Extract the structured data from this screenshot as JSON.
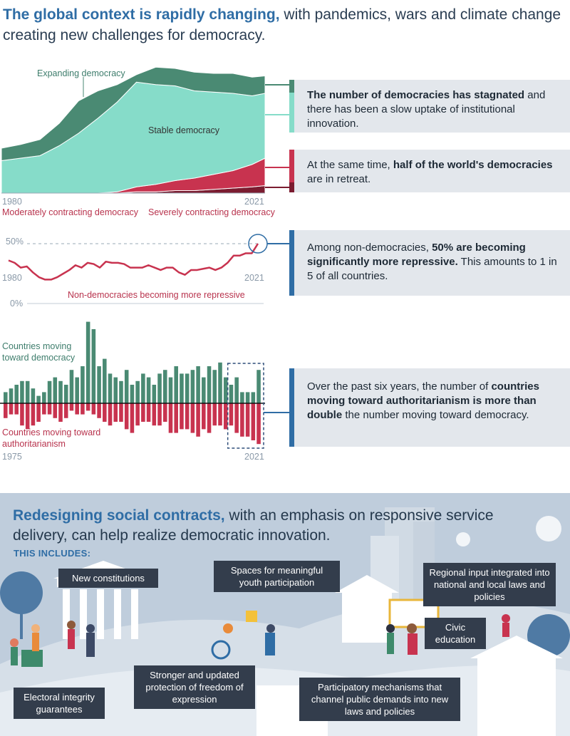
{
  "header": {
    "title_bold": "The global context is rapidly changing,",
    "title_rest": " with pandemics, wars and climate change creating new challenges for democracy."
  },
  "colors": {
    "expanding": "#4a8a73",
    "stable": "#86dcc9",
    "moderate": "#c8334f",
    "severe": "#7b1c30",
    "blue": "#2f6da5"
  },
  "area_chart": {
    "labels": {
      "expanding": "Expanding democracy",
      "stable": "Stable democracy",
      "moderate": "Moderately contracting democracy",
      "severe": "Severely contracting democracy",
      "year_start": "1980",
      "year_end": "2021"
    },
    "chart_data": {
      "type": "area",
      "x": [
        1980,
        1983,
        1986,
        1989,
        1992,
        1995,
        1998,
        2001,
        2004,
        2007,
        2010,
        2013,
        2016,
        2019,
        2021
      ],
      "series": [
        {
          "name": "Severely contracting democracy",
          "values": [
            0,
            0,
            0,
            0,
            0,
            0,
            0,
            1,
            1,
            2,
            2,
            3,
            4,
            5,
            6
          ]
        },
        {
          "name": "Moderately contracting democracy",
          "values": [
            0,
            0,
            0,
            0,
            0,
            0,
            1,
            4,
            6,
            8,
            10,
            12,
            14,
            18,
            22
          ]
        },
        {
          "name": "Stable democracy",
          "values": [
            26,
            28,
            30,
            38,
            48,
            60,
            72,
            84,
            80,
            76,
            70,
            66,
            62,
            55,
            52
          ]
        },
        {
          "name": "Expanding democracy",
          "values": [
            10,
            11,
            13,
            18,
            26,
            22,
            14,
            6,
            14,
            14,
            15,
            15,
            16,
            15,
            14
          ]
        }
      ]
    },
    "box": {
      "bold": "The number of democracies has stagnated",
      "rest": " and there has been a slow uptake of institutional innovation."
    },
    "box2": {
      "pre": "At the same time, ",
      "bold": "half of the world's democracies",
      "rest": " are in retreat."
    }
  },
  "line_chart": {
    "labels": {
      "pct50": "50%",
      "pct0": "0%",
      "year_start": "1980",
      "year_end": "2021",
      "series": "Non-democracies becoming more repressive"
    },
    "chart_data": {
      "type": "line",
      "x": [
        1980,
        1981,
        1982,
        1983,
        1984,
        1985,
        1986,
        1987,
        1988,
        1989,
        1990,
        1991,
        1992,
        1993,
        1994,
        1995,
        1996,
        1997,
        1998,
        1999,
        2000,
        2001,
        2002,
        2003,
        2004,
        2005,
        2006,
        2007,
        2008,
        2009,
        2010,
        2011,
        2012,
        2013,
        2014,
        2015,
        2016,
        2017,
        2018,
        2019,
        2020,
        2021
      ],
      "y": [
        36,
        34,
        30,
        31,
        26,
        22,
        20,
        20,
        22,
        25,
        28,
        32,
        30,
        34,
        33,
        30,
        35,
        34,
        34,
        33,
        30,
        30,
        30,
        32,
        30,
        28,
        30,
        30,
        26,
        24,
        28,
        28,
        29,
        30,
        28,
        30,
        34,
        40,
        40,
        42,
        42,
        50
      ],
      "ylim": [
        0,
        50
      ]
    },
    "box": {
      "pre": "Among non-democracies, ",
      "bold": "50% are becoming significantly more repressive.",
      "rest": " This amounts to 1 in 5 of all countries."
    }
  },
  "bar_chart": {
    "labels": {
      "up": "Countries moving toward democracy",
      "down": "Countries moving toward authoritarianism",
      "year_start": "1975",
      "year_end": "2021"
    },
    "chart_data": {
      "type": "bar",
      "x": [
        1975,
        1976,
        1977,
        1978,
        1979,
        1980,
        1981,
        1982,
        1983,
        1984,
        1985,
        1986,
        1987,
        1988,
        1989,
        1990,
        1991,
        1992,
        1993,
        1994,
        1995,
        1996,
        1997,
        1998,
        1999,
        2000,
        2001,
        2002,
        2003,
        2004,
        2005,
        2006,
        2007,
        2008,
        2009,
        2010,
        2011,
        2012,
        2013,
        2014,
        2015,
        2016,
        2017,
        2018,
        2019,
        2020,
        2021
      ],
      "series": [
        {
          "name": "Countries moving toward democracy",
          "values": [
            3,
            4,
            5,
            6,
            6,
            4,
            2,
            3,
            6,
            7,
            6,
            5,
            9,
            7,
            10,
            22,
            20,
            10,
            12,
            8,
            7,
            6,
            9,
            5,
            6,
            8,
            7,
            5,
            8,
            9,
            7,
            10,
            8,
            8,
            9,
            10,
            7,
            10,
            9,
            11,
            7,
            5,
            7,
            3,
            3,
            3,
            9
          ]
        },
        {
          "name": "Countries moving toward authoritarianism",
          "values": [
            -4,
            -3,
            -3,
            -6,
            -7,
            -6,
            -5,
            -3,
            -3,
            -4,
            -5,
            -4,
            -2,
            -3,
            -3,
            -2,
            -3,
            -4,
            -5,
            -6,
            -5,
            -5,
            -7,
            -8,
            -6,
            -5,
            -5,
            -6,
            -6,
            -5,
            -8,
            -8,
            -7,
            -7,
            -8,
            -9,
            -7,
            -8,
            -6,
            -6,
            -7,
            -6,
            -8,
            -9,
            -9,
            -10,
            -11
          ]
        }
      ]
    },
    "box": {
      "pre": "Over the past six years, the number of ",
      "bold": "countries moving toward authoritarianism is more than double",
      "rest": " the number moving toward democracy."
    }
  },
  "bottom": {
    "title_bold": "Redesigning social contracts,",
    "title_rest": " with an emphasis on responsive service delivery, can help realize democratic innovation.",
    "includes": "THIS INCLUDES:",
    "callouts": {
      "constitutions": "New constitutions",
      "youth": "Spaces for meaningful youth participation",
      "regional": "Regional input integrated into national and local laws and policies",
      "civic": "Civic education",
      "electoral": "Electoral integrity guarantees",
      "expression": "Stronger and updated protection of freedom of expression",
      "participatory": "Participatory mechanisms that channel public demands into new laws and policies"
    }
  }
}
